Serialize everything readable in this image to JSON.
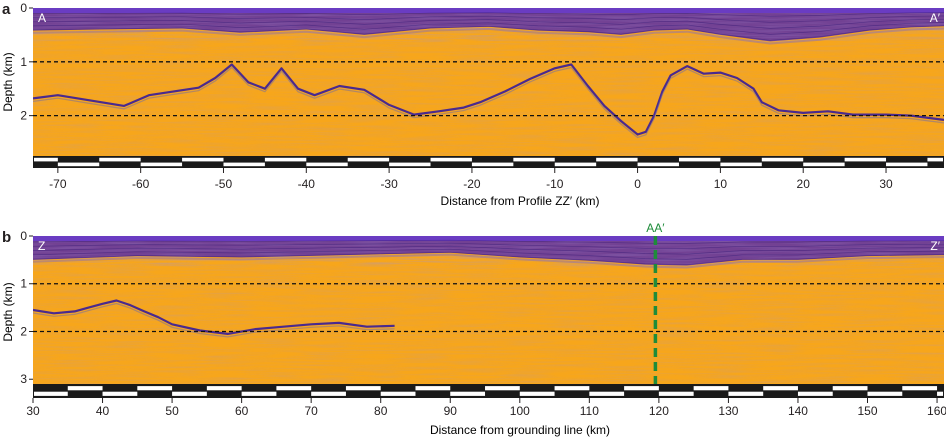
{
  "chart_data": [
    {
      "type": "heatmap",
      "panel_label": "a",
      "start_label": "A",
      "end_label": "A′",
      "xlabel": "Distance from Profile ZZ′ (km)",
      "ylabel": "Depth (km)",
      "xlim": [
        -73,
        37
      ],
      "ylim": [
        0,
        2.75
      ],
      "x_ticks": [
        -70,
        -60,
        -50,
        -40,
        -30,
        -20,
        -10,
        0,
        10,
        20,
        30
      ],
      "y_ticks": [
        0,
        1,
        2
      ],
      "dashed_depths": [
        1,
        2
      ],
      "bed_reflector": {
        "x": [
          -73,
          -70,
          -66,
          -62,
          -59,
          -56,
          -53,
          -51,
          -49,
          -47,
          -45,
          -43,
          -41,
          -39,
          -36,
          -33,
          -30,
          -27,
          -24,
          -21,
          -19,
          -16,
          -13,
          -10,
          -8,
          -6,
          -4,
          -2,
          0,
          1,
          2,
          3,
          4,
          6,
          8,
          10,
          12,
          14,
          15,
          17,
          20,
          23,
          26,
          30,
          33,
          37
        ],
        "depth_km": [
          1.68,
          1.62,
          1.72,
          1.82,
          1.62,
          1.55,
          1.48,
          1.3,
          1.05,
          1.38,
          1.5,
          1.12,
          1.5,
          1.62,
          1.45,
          1.52,
          1.8,
          1.98,
          1.92,
          1.85,
          1.75,
          1.55,
          1.32,
          1.12,
          1.05,
          1.45,
          1.82,
          2.1,
          2.35,
          2.3,
          2.0,
          1.55,
          1.25,
          1.08,
          1.22,
          1.2,
          1.3,
          1.5,
          1.75,
          1.9,
          1.95,
          1.92,
          1.98,
          1.98,
          2.0,
          2.08
        ]
      },
      "layer_base": {
        "x": [
          -73,
          -65,
          -55,
          -48,
          -40,
          -33,
          -25,
          -18,
          -12,
          -6,
          -2,
          2,
          6,
          10,
          16,
          22,
          28,
          33,
          37
        ],
        "depth_km": [
          0.42,
          0.4,
          0.38,
          0.46,
          0.4,
          0.5,
          0.38,
          0.35,
          0.42,
          0.45,
          0.5,
          0.42,
          0.4,
          0.5,
          0.62,
          0.55,
          0.42,
          0.36,
          0.34
        ]
      }
    },
    {
      "type": "heatmap",
      "panel_label": "b",
      "start_label": "Z",
      "end_label": "Z′",
      "marker_label": "AA′",
      "marker_x": 119.5,
      "marker_color": "#1e8c3a",
      "xlabel": "Distance from grounding line (km)",
      "ylabel": "Depth (km)",
      "xlim": [
        30,
        161
      ],
      "ylim": [
        0,
        3.1
      ],
      "x_ticks": [
        30,
        40,
        50,
        60,
        70,
        80,
        90,
        100,
        110,
        120,
        130,
        140,
        150,
        160
      ],
      "y_ticks": [
        0,
        1,
        2,
        3
      ],
      "dashed_depths": [
        1,
        2
      ],
      "bed_reflector": {
        "x": [
          30,
          33,
          36,
          38,
          40,
          42,
          44,
          46,
          48,
          50,
          54,
          58,
          62,
          66,
          70,
          74,
          78,
          82
        ],
        "depth_km": [
          1.55,
          1.62,
          1.58,
          1.5,
          1.42,
          1.35,
          1.45,
          1.58,
          1.7,
          1.85,
          1.98,
          2.05,
          1.95,
          1.9,
          1.85,
          1.82,
          1.9,
          1.88
        ]
      },
      "layer_base": {
        "x": [
          30,
          45,
          60,
          75,
          90,
          100,
          110,
          118,
          124,
          132,
          140,
          150,
          161
        ],
        "depth_km": [
          0.5,
          0.42,
          0.45,
          0.4,
          0.35,
          0.45,
          0.52,
          0.6,
          0.62,
          0.5,
          0.5,
          0.42,
          0.4
        ]
      }
    }
  ],
  "colors": {
    "background": "#f7a61b",
    "layers": "#5a2fa8",
    "surface": "#6a3cc2",
    "dashed": "#111111",
    "scale_black": "#1a1a1a",
    "scale_white": "#ffffff"
  }
}
